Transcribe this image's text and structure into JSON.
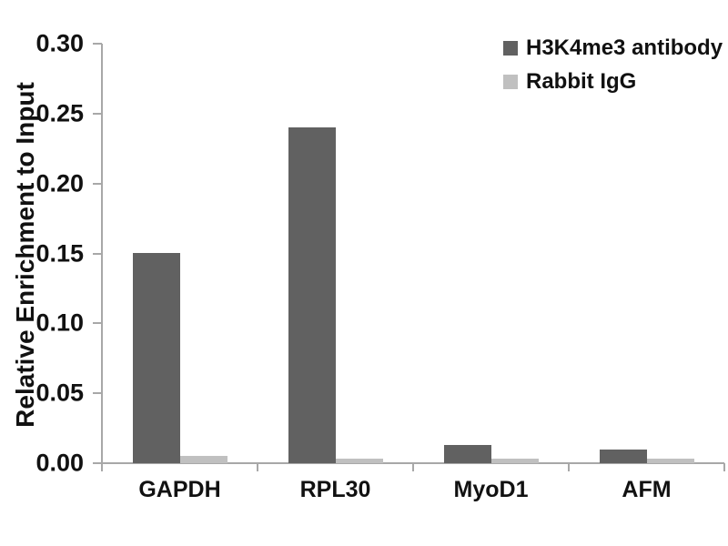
{
  "chart_data": {
    "type": "bar",
    "title": "",
    "xlabel": "",
    "ylabel": "Relative Enrichment to Input",
    "categories": [
      "GAPDH",
      "RPL30",
      "MyoD1",
      "AFM"
    ],
    "series": [
      {
        "name": "H3K4me3 antibody",
        "color": "#616161",
        "values": [
          0.15,
          0.24,
          0.013,
          0.01
        ]
      },
      {
        "name": "Rabbit IgG",
        "color": "#c0c0c0",
        "values": [
          0.005,
          0.003,
          0.003,
          0.003
        ]
      }
    ],
    "ylim": [
      0,
      0.3
    ],
    "ytick_step": 0.05,
    "ytick_labels": [
      "0.00",
      "0.05",
      "0.10",
      "0.15",
      "0.20",
      "0.25",
      "0.30"
    ],
    "grid": false,
    "legend_position": "top-right",
    "axis_color": "#a8a8a8",
    "text_color": "#111111",
    "background_color": "#ffffff"
  }
}
